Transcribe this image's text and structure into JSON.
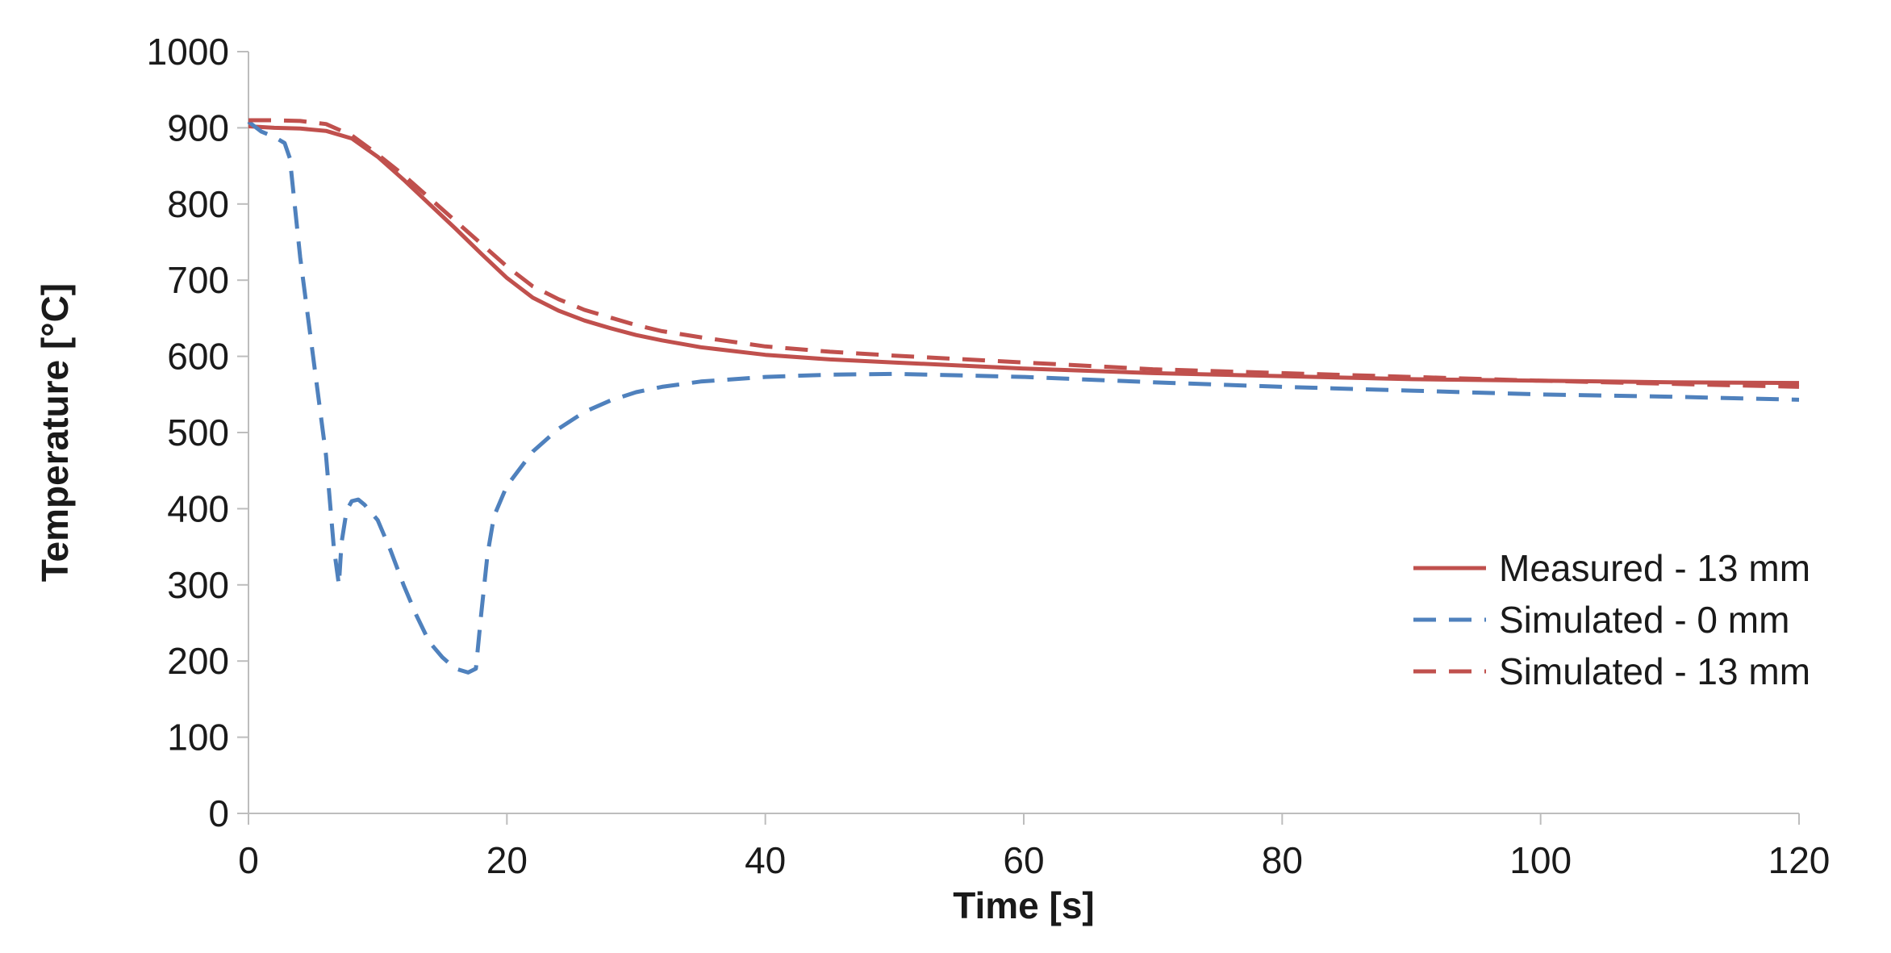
{
  "chart_data": {
    "type": "line",
    "title": "",
    "xlabel": "Time [s]",
    "ylabel": "Temperature [°C]",
    "xlim": [
      0,
      120
    ],
    "ylim": [
      0,
      1000
    ],
    "x_ticks": [
      0,
      20,
      40,
      60,
      80,
      100,
      120
    ],
    "y_ticks": [
      0,
      100,
      200,
      300,
      400,
      500,
      600,
      700,
      800,
      900,
      1000
    ],
    "grid": false,
    "legend_position": "right",
    "series": [
      {
        "name": "Measured - 13 mm",
        "color": "#c0504d",
        "style": "solid",
        "x": [
          0,
          2,
          4,
          6,
          8,
          10,
          12,
          14,
          16,
          18,
          20,
          22,
          24,
          26,
          28,
          30,
          32,
          35,
          40,
          45,
          50,
          60,
          70,
          80,
          90,
          100,
          110,
          120
        ],
        "y": [
          902,
          900,
          899,
          896,
          886,
          862,
          832,
          800,
          768,
          735,
          703,
          677,
          660,
          647,
          637,
          628,
          621,
          612,
          602,
          596,
          592,
          584,
          578,
          574,
          570,
          568,
          566,
          565
        ]
      },
      {
        "name": "Simulated - 0 mm",
        "color": "#4f81bd",
        "style": "dashed",
        "x": [
          0,
          1,
          2,
          2.8,
          3.2,
          4,
          5,
          6,
          6.6,
          7,
          7.2,
          7.6,
          8,
          8.5,
          9,
          10,
          11,
          12,
          13,
          14,
          15,
          16,
          17,
          17.6,
          18,
          18.5,
          19,
          20,
          22,
          24,
          26,
          28,
          30,
          32,
          35,
          40,
          45,
          50,
          60,
          70,
          80,
          90,
          100,
          110,
          120
        ],
        "y": [
          908,
          895,
          888,
          880,
          860,
          730,
          600,
          470,
          350,
          300,
          355,
          398,
          410,
          412,
          405,
          385,
          345,
          300,
          260,
          225,
          205,
          190,
          185,
          190,
          260,
          340,
          390,
          430,
          475,
          505,
          527,
          542,
          553,
          560,
          567,
          573,
          576,
          577,
          573,
          566,
          560,
          555,
          550,
          547,
          543
        ]
      },
      {
        "name": "Simulated - 13 mm",
        "color": "#c0504d",
        "style": "dashed",
        "x": [
          0,
          2,
          4,
          6,
          8,
          10,
          12,
          14,
          16,
          18,
          20,
          22,
          24,
          26,
          28,
          30,
          32,
          35,
          40,
          45,
          50,
          60,
          70,
          80,
          90,
          100,
          110,
          120
        ],
        "y": [
          910,
          910,
          909,
          905,
          890,
          865,
          838,
          808,
          778,
          748,
          718,
          692,
          675,
          661,
          651,
          641,
          633,
          625,
          613,
          606,
          601,
          592,
          583,
          578,
          573,
          568,
          564,
          560
        ]
      }
    ]
  }
}
